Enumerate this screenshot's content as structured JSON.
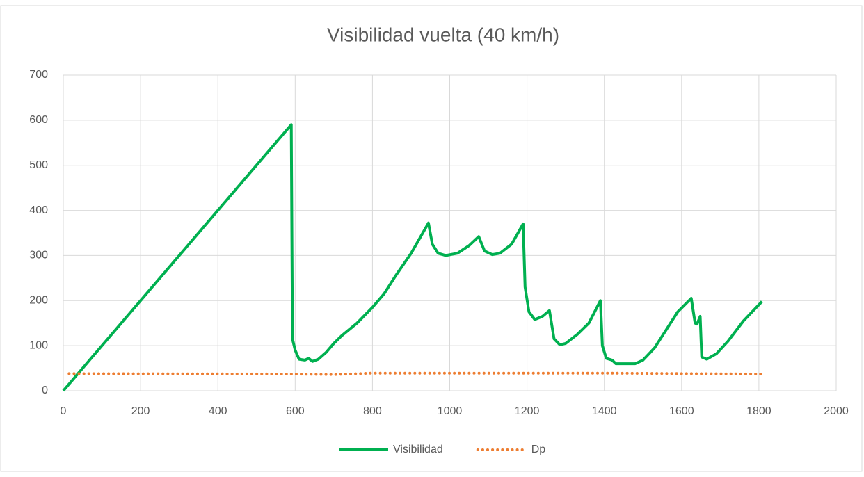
{
  "chart_data": {
    "type": "line",
    "title": "Visibilidad vuelta (40 km/h)",
    "xlim": [
      0,
      2000
    ],
    "xticks": [
      0,
      200,
      400,
      600,
      800,
      1000,
      1200,
      1400,
      1600,
      1800,
      2000
    ],
    "ylim": [
      0,
      700
    ],
    "yticks": [
      0,
      100,
      200,
      300,
      400,
      500,
      600,
      700
    ],
    "grid": true,
    "legend": "bottom",
    "series": [
      {
        "name": "Visibilidad",
        "color": "#00b050",
        "style": "solid",
        "x": [
          0,
          590,
          593,
          600,
          610,
          625,
          635,
          645,
          660,
          680,
          700,
          720,
          760,
          800,
          830,
          860,
          900,
          945,
          955,
          970,
          990,
          1020,
          1050,
          1075,
          1090,
          1110,
          1130,
          1160,
          1190,
          1195,
          1205,
          1220,
          1240,
          1258,
          1270,
          1285,
          1300,
          1330,
          1360,
          1390,
          1395,
          1405,
          1420,
          1430,
          1480,
          1500,
          1530,
          1560,
          1590,
          1625,
          1635,
          1640,
          1648,
          1652,
          1665,
          1690,
          1720,
          1760,
          1808
        ],
        "values": [
          0,
          590,
          115,
          90,
          70,
          68,
          72,
          65,
          70,
          85,
          105,
          122,
          150,
          185,
          215,
          255,
          305,
          372,
          325,
          305,
          300,
          305,
          322,
          342,
          310,
          302,
          305,
          325,
          370,
          230,
          175,
          158,
          165,
          178,
          115,
          102,
          105,
          125,
          150,
          200,
          100,
          72,
          68,
          60,
          60,
          68,
          95,
          135,
          175,
          205,
          150,
          148,
          165,
          75,
          70,
          82,
          110,
          155,
          198
        ]
      },
      {
        "name": "Dp",
        "color": "#ed7d31",
        "style": "dotted",
        "x": [
          15,
          600,
          700,
          800,
          1400,
          1808
        ],
        "values": [
          38,
          37,
          36,
          39,
          39,
          37
        ]
      }
    ]
  }
}
